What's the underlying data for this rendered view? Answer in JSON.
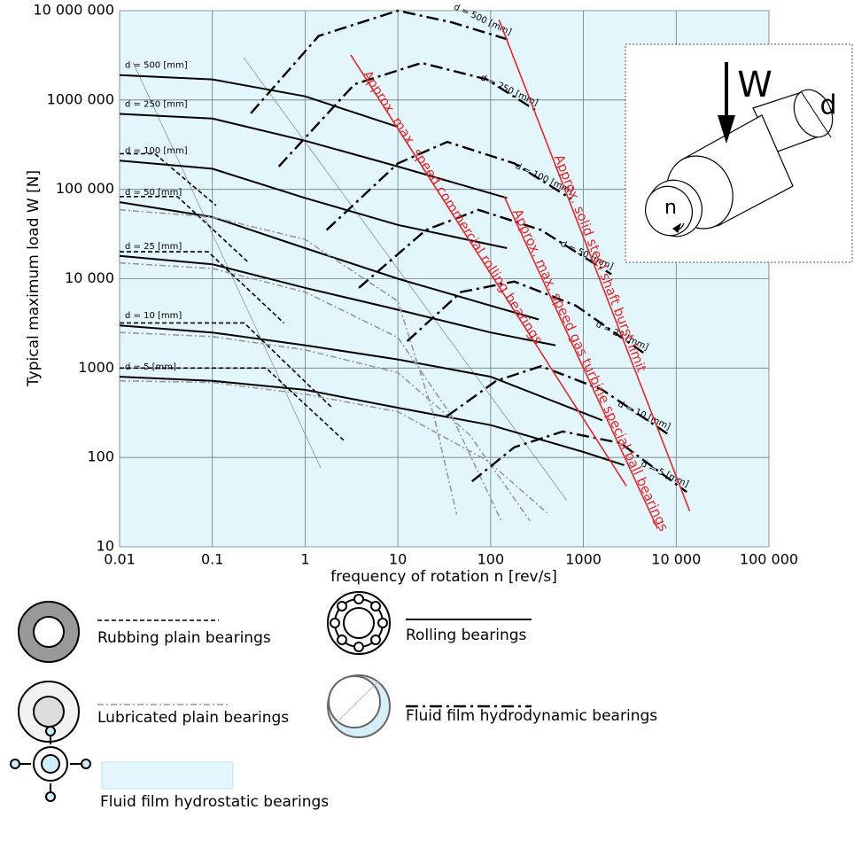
{
  "chart_data": {
    "type": "line",
    "x_label": "frequency of rotation n [rev/s]",
    "y_label": "Typical maximum load W [N]",
    "x_log": true,
    "y_log": true,
    "grid": true,
    "xlim": [
      0.01,
      100000
    ],
    "ylim": [
      10,
      10000000
    ],
    "xticks": [
      0.01,
      0.1,
      1,
      10,
      100,
      1000,
      {
        "value": 10000,
        "label": "10 000"
      },
      {
        "value": 100000,
        "label": "100 000"
      }
    ],
    "yticks": [
      10,
      100,
      1000,
      {
        "value": 10000,
        "label": "10 000"
      },
      {
        "value": 100000,
        "label": "100 000"
      },
      {
        "value": 1000000,
        "label": "1000 000"
      },
      {
        "value": 10000000,
        "label": "10 000 000"
      }
    ],
    "background": {
      "name": "Fluid film hydrostatic bearings",
      "color": "#e3f6fb"
    },
    "series": [
      {
        "name": "Rubbing plain bearings",
        "color": "#000000",
        "line_style": "dashed",
        "curves": [
          {
            "x": [
              0.01,
              0.024,
              0.11
            ],
            "values": [
              250000,
              250000,
              66000
            ]
          },
          {
            "x": [
              0.01,
              0.042,
              0.24
            ],
            "values": [
              83000,
              83000,
              15500
            ]
          },
          {
            "x": [
              0.01,
              0.09,
              0.59
            ],
            "values": [
              20000,
              20000,
              3200
            ]
          },
          {
            "x": [
              0.01,
              0.22,
              1.95
            ],
            "values": [
              3200,
              3200,
              360
            ]
          },
          {
            "x": [
              0.01,
              0.38,
              2.7
            ],
            "values": [
              1000,
              1000,
              150
            ]
          }
        ]
      },
      {
        "name": "Rolling bearings",
        "color": "#000000",
        "line_style": "solid",
        "curves": [
          {
            "label": "d = 500 [mm]",
            "x": [
              0.01,
              0.1,
              1,
              10
            ],
            "values": [
              1900000,
              1700000,
              1100000,
              500000
            ]
          },
          {
            "label": "d = 250 [mm]",
            "x": [
              0.01,
              0.1,
              1,
              10,
              150
            ],
            "values": [
              700000,
              620000,
              350000,
              180000,
              80000
            ]
          },
          {
            "label": "d = 100 [mm]",
            "x": [
              0.01,
              0.1,
              1,
              10,
              150
            ],
            "values": [
              210000,
              170000,
              80000,
              40000,
              22000
            ]
          },
          {
            "label": "d = 50 [mm]",
            "x": [
              0.01,
              0.1,
              1,
              10,
              100,
              330
            ],
            "values": [
              72000,
              49000,
              22000,
              10000,
              5000,
              3500
            ]
          },
          {
            "label": "d = 25 [mm]",
            "x": [
              0.01,
              0.1,
              1,
              10,
              100,
              500
            ],
            "values": [
              18000,
              14500,
              7900,
              4500,
              2500,
              1800
            ]
          },
          {
            "label": "d = 10 [mm]",
            "x": [
              0.01,
              0.1,
              1,
              10,
              100,
              1600
            ],
            "values": [
              3000,
              2500,
              1800,
              1250,
              800,
              260
            ]
          },
          {
            "label": "d = 5 [mm]",
            "x": [
              0.01,
              0.1,
              1,
              10,
              100,
              1000,
              2750
            ],
            "values": [
              800,
              720,
              570,
              360,
              230,
              115,
              82
            ]
          }
        ]
      },
      {
        "name": "Lubricated plain bearings",
        "color": "#999999",
        "line_style": "dash-dot",
        "curves": [
          {
            "x": [
              0.01,
              0.1,
              1,
              10,
              24.5,
              43
            ],
            "values": [
              59000,
              49000,
              27500,
              5600,
              290,
              23
            ]
          },
          {
            "x": [
              0.01,
              0.1,
              1,
              10,
              38,
              130
            ],
            "values": [
              15000,
              13000,
              7100,
              2200,
              290,
              19.5
            ]
          },
          {
            "x": [
              0.01,
              0.1,
              1,
              10,
              59,
              265
            ],
            "values": [
              2500,
              2250,
              1600,
              890,
              180,
              19.5
            ]
          },
          {
            "x": [
              0.01,
              0.1,
              1,
              10,
              92,
              405
            ],
            "values": [
              720,
              690,
              510,
              325,
              92,
              24
            ]
          }
        ]
      },
      {
        "name": "Fluid film hydrodynamic bearings",
        "color": "#000000",
        "line_style": "long-dash-dot",
        "curves": [
          {
            "label": "d = 500 [mm]",
            "x": [
              0.26,
              1.4,
              10,
              38,
              160
            ],
            "values": [
              710000,
              5200000,
              10000000,
              7400000,
              4700000
            ]
          },
          {
            "label": "d = 250 [mm]",
            "x": [
              0.52,
              3.4,
              18,
              91,
              310
            ],
            "values": [
              180000,
              1500000,
              2600000,
              1700000,
              760000
            ]
          },
          {
            "label": "d = 100 [mm]",
            "x": [
              1.7,
              10,
              34,
              180,
              740
            ],
            "values": [
              35000,
              195000,
              340000,
              195000,
              78000
            ]
          },
          {
            "label": "d = 50 [mm]",
            "x": [
              3.8,
              20,
              74,
              350,
              2000
            ],
            "values": [
              7900,
              35000,
              59000,
              35000,
              11200
            ]
          },
          {
            "label": "d = 25 [mm]",
            "x": [
              12.6,
              48,
              180,
              830,
              4800
            ],
            "values": [
              2000,
              7100,
              9300,
              5000,
              1400
            ]
          },
          {
            "label": "d = 10 [mm]",
            "x": [
              34,
              115,
              350,
              1600,
              8300
            ],
            "values": [
              290,
              720,
              1050,
              570,
              180
            ]
          },
          {
            "label": "d = 5 [mm]",
            "x": [
              63,
              180,
              600,
              2500,
              13000
            ],
            "values": [
              54,
              130,
              195,
              145,
              41
            ]
          }
        ]
      }
    ],
    "limits": [
      {
        "label": "Approx. max. speed commercial rolling bearings",
        "color": "#e8262b",
        "x": [
          3.1,
          2900
        ],
        "values": [
          3200000,
          48
        ]
      },
      {
        "label": "Approx. max. speed gas turbine special ball bearings",
        "color": "#e8262b",
        "x": [
          140,
          6300
        ],
        "values": [
          83000,
          16
        ]
      },
      {
        "label": "Approx. solid steel shaft burst limit",
        "color": "#e8262b",
        "x": [
          123,
          14000
        ],
        "values": [
          7900000,
          25
        ]
      }
    ]
  },
  "inset": {
    "load": "W",
    "diameter": "d",
    "speed": "n"
  }
}
